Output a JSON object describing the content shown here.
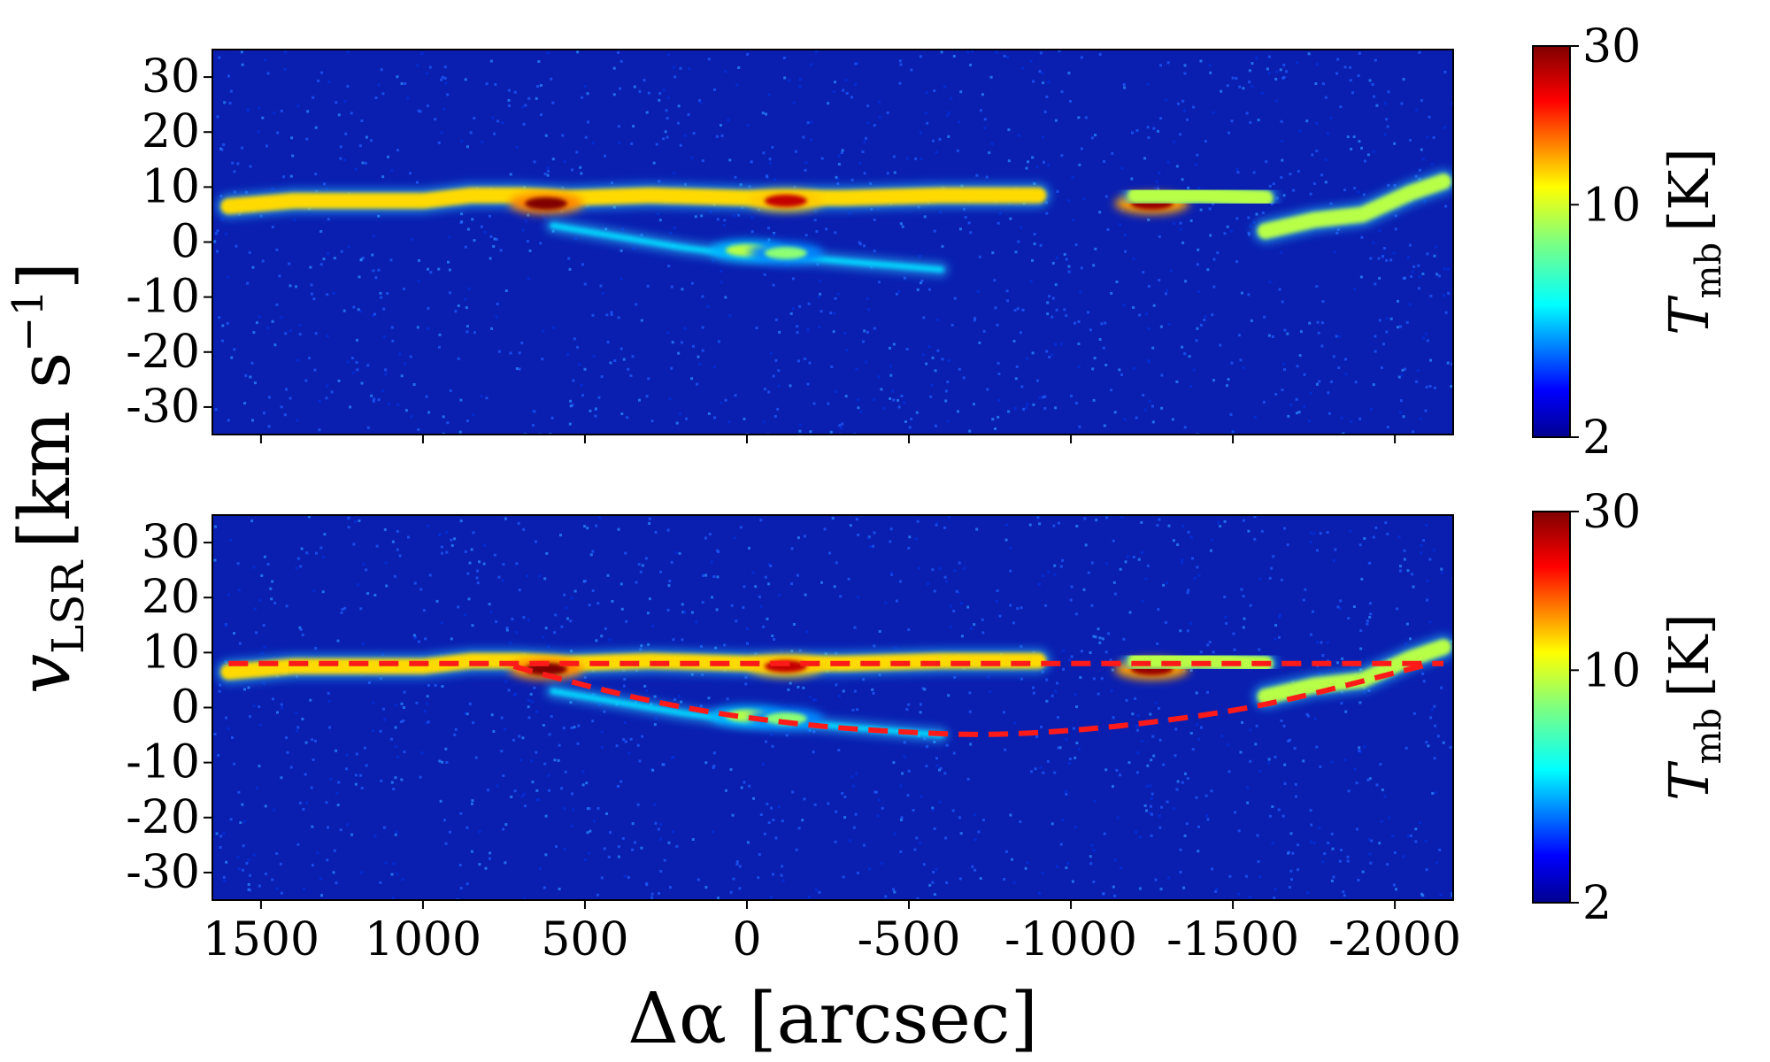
{
  "chart_data": [
    {
      "type": "heatmap",
      "panel": "top",
      "x_ticks": [
        1500,
        1000,
        500,
        0,
        -500,
        -1000,
        -1500,
        -2000
      ],
      "x_tick_labels": [
        "",
        "",
        "",
        "",
        "",
        "",
        "",
        ""
      ],
      "xlim": [
        1650,
        -2180
      ],
      "y_ticks": [
        30,
        20,
        10,
        0,
        -10,
        -20,
        -30
      ],
      "y_tick_labels": [
        "30",
        "20",
        "10",
        "0",
        "-10",
        "-20",
        "-30"
      ],
      "ylim": [
        -35,
        35
      ],
      "colormap": "jet",
      "background_color": "#0a1fb0",
      "features": [
        {
          "kind": "ridge",
          "x": [
            1600,
            1400,
            1200,
            1000,
            850,
            700,
            550,
            300,
            0,
            -300,
            -600,
            -900
          ],
          "y": [
            6.5,
            7.5,
            7.5,
            7.5,
            8.5,
            8.5,
            8.0,
            8.5,
            8.0,
            8.0,
            8.5,
            8.5
          ],
          "peak_K": 12
        },
        {
          "kind": "peak",
          "x": 620,
          "y": 7.0,
          "peak_K": 30
        },
        {
          "kind": "peak",
          "x": -120,
          "y": 7.5,
          "peak_K": 25
        },
        {
          "kind": "arc",
          "x": [
            600,
            400,
            200,
            0,
            -200,
            -400,
            -600
          ],
          "y": [
            3.0,
            1.0,
            -1.0,
            -2.5,
            -3.0,
            -4.0,
            -5.0
          ],
          "peak_K": 5
        },
        {
          "kind": "peak",
          "x": 0,
          "y": -1.5,
          "peak_K": 9
        },
        {
          "kind": "peak",
          "x": -120,
          "y": -2.0,
          "peak_K": 8
        },
        {
          "kind": "peak",
          "x": -1250,
          "y": 7.0,
          "peak_K": 28
        },
        {
          "kind": "ridge",
          "x": [
            -1200,
            -1400,
            -1600
          ],
          "y": [
            8.5,
            8.5,
            8.0
          ],
          "peak_K": 9
        },
        {
          "kind": "ridge",
          "x": [
            -1600,
            -1750,
            -1900,
            -2050,
            -2150
          ],
          "y": [
            2.0,
            4.0,
            5.0,
            9.0,
            11.0
          ],
          "peak_K": 9
        }
      ]
    },
    {
      "type": "heatmap",
      "panel": "bottom",
      "x_ticks": [
        1500,
        1000,
        500,
        0,
        -500,
        -1000,
        -1500,
        -2000
      ],
      "x_tick_labels": [
        "1500",
        "1000",
        "500",
        "0",
        "-500",
        "-1000",
        "-1500",
        "-2000"
      ],
      "xlim": [
        1650,
        -2180
      ],
      "y_ticks": [
        30,
        20,
        10,
        0,
        -10,
        -20,
        -30
      ],
      "y_tick_labels": [
        "30",
        "20",
        "10",
        "0",
        "-10",
        "-20",
        "-30"
      ],
      "ylim": [
        -35,
        35
      ],
      "colormap": "jet",
      "background_color": "#0a1fb0",
      "features": [
        {
          "kind": "ridge",
          "x": [
            1600,
            1400,
            1200,
            1000,
            850,
            700,
            550,
            300,
            0,
            -300,
            -600,
            -900
          ],
          "y": [
            6.5,
            7.5,
            7.5,
            7.5,
            8.5,
            8.5,
            8.0,
            8.5,
            8.0,
            8.0,
            8.5,
            8.5
          ],
          "peak_K": 12
        },
        {
          "kind": "peak",
          "x": 620,
          "y": 7.0,
          "peak_K": 30
        },
        {
          "kind": "peak",
          "x": -120,
          "y": 7.5,
          "peak_K": 25
        },
        {
          "kind": "arc",
          "x": [
            600,
            400,
            200,
            0,
            -200,
            -400,
            -600
          ],
          "y": [
            3.0,
            1.0,
            -1.0,
            -2.5,
            -3.0,
            -4.0,
            -5.0
          ],
          "peak_K": 5
        },
        {
          "kind": "peak",
          "x": 0,
          "y": -1.5,
          "peak_K": 9
        },
        {
          "kind": "peak",
          "x": -120,
          "y": -2.0,
          "peak_K": 8
        },
        {
          "kind": "peak",
          "x": -1250,
          "y": 7.0,
          "peak_K": 28
        },
        {
          "kind": "ridge",
          "x": [
            -1200,
            -1400,
            -1600
          ],
          "y": [
            8.5,
            8.5,
            8.0
          ],
          "peak_K": 9
        },
        {
          "kind": "ridge",
          "x": [
            -1600,
            -1750,
            -1900,
            -2050,
            -2150
          ],
          "y": [
            2.0,
            4.0,
            5.0,
            9.0,
            11.0
          ],
          "peak_K": 9
        }
      ],
      "overlay_lines": [
        {
          "style": "dashed",
          "color": "#ff1a1a",
          "x": [
            1600,
            -2150
          ],
          "y": [
            8.0,
            8.0
          ]
        },
        {
          "style": "dashed",
          "color": "#ff1a1a",
          "x": [
            720,
            500,
            300,
            100,
            -100,
            -300,
            -500,
            -700,
            -900,
            -1100,
            -1300,
            -1500,
            -1700,
            -1900,
            -2100
          ],
          "y": [
            7.5,
            4.0,
            1.2,
            -1.0,
            -2.6,
            -3.8,
            -4.5,
            -5.0,
            -4.6,
            -3.7,
            -2.3,
            -0.6,
            1.8,
            4.8,
            7.8
          ]
        }
      ]
    }
  ],
  "x_axis_title": "Δα [arcsec]",
  "y_axis_title": "v",
  "y_axis_title_sub": "LSR",
  "y_axis_title_units": "[km s",
  "y_axis_title_exp": "−1",
  "y_axis_title_close": "]",
  "colorbars": [
    {
      "title": "T",
      "title_sub": "mb",
      "title_units": "[K]",
      "min": 2,
      "max": 30,
      "scale": "log",
      "tick_values": [
        30,
        10,
        2
      ],
      "tick_labels": [
        "30",
        "10",
        "2"
      ]
    },
    {
      "title": "T",
      "title_sub": "mb",
      "title_units": "[K]",
      "min": 2,
      "max": 30,
      "scale": "log",
      "tick_values": [
        30,
        10,
        2
      ],
      "tick_labels": [
        "30",
        "10",
        "2"
      ]
    }
  ]
}
